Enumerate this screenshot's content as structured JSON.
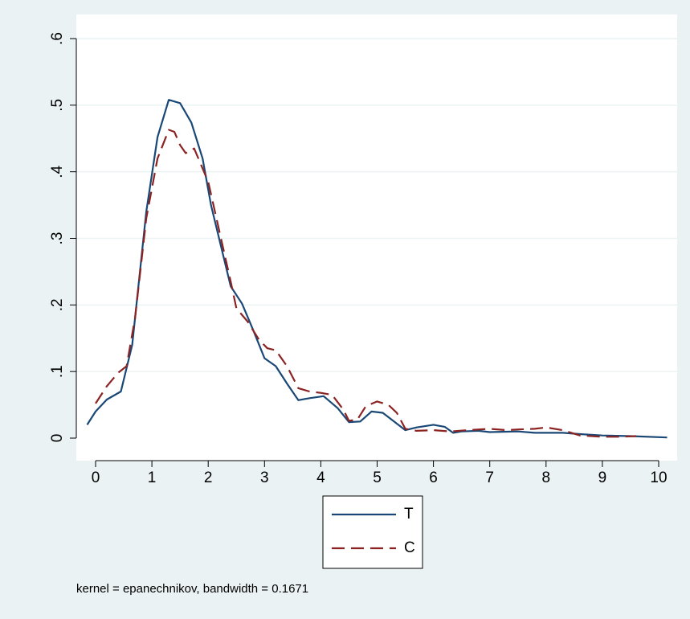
{
  "chart_data": {
    "type": "line",
    "title": "",
    "xlabel": "",
    "ylabel": "",
    "xlim": [
      -0.2,
      10.2
    ],
    "ylim": [
      0,
      0.6
    ],
    "x_ticks": [
      0,
      1,
      2,
      3,
      4,
      5,
      6,
      7,
      8,
      9,
      10
    ],
    "x_tick_labels": [
      "0",
      "1",
      "2",
      "3",
      "4",
      "5",
      "6",
      "7",
      "8",
      "9",
      "10"
    ],
    "y_ticks": [
      0,
      0.1,
      0.2,
      0.3,
      0.4,
      0.5,
      0.6
    ],
    "y_tick_labels": [
      "0",
      ".1",
      ".2",
      ".3",
      ".4",
      ".5",
      ".6"
    ],
    "grid": "horizontal",
    "legend_position": "bottom-center",
    "note": "kernel = epanechnikov, bandwidth = 0.1671",
    "colors": {
      "background": "#eaf2f3",
      "plot_area": "#ffffff",
      "gridline": "#eaf2f3",
      "T": "#1a4876",
      "C": "#8b2323"
    },
    "series": [
      {
        "name": "T",
        "style": "solid",
        "x": [
          -0.15,
          0.0,
          0.2,
          0.45,
          0.65,
          0.9,
          1.1,
          1.3,
          1.5,
          1.7,
          1.9,
          2.05,
          2.4,
          2.6,
          2.8,
          3.0,
          3.2,
          3.4,
          3.6,
          3.8,
          4.05,
          4.3,
          4.5,
          4.7,
          4.9,
          5.1,
          5.3,
          5.5,
          5.7,
          6.0,
          6.2,
          6.35,
          6.5,
          6.8,
          7.0,
          7.5,
          7.8,
          8.0,
          8.3,
          8.6,
          9.0,
          9.5,
          10.15
        ],
        "values": [
          0.02,
          0.04,
          0.058,
          0.07,
          0.14,
          0.34,
          0.452,
          0.508,
          0.503,
          0.474,
          0.42,
          0.35,
          0.228,
          0.202,
          0.162,
          0.12,
          0.108,
          0.082,
          0.057,
          0.06,
          0.063,
          0.045,
          0.024,
          0.025,
          0.04,
          0.038,
          0.025,
          0.012,
          0.016,
          0.02,
          0.017,
          0.008,
          0.01,
          0.011,
          0.009,
          0.01,
          0.008,
          0.008,
          0.008,
          0.006,
          0.004,
          0.003,
          0.001
        ]
      },
      {
        "name": "C",
        "style": "dashed",
        "x": [
          0.0,
          0.2,
          0.4,
          0.55,
          0.7,
          0.9,
          1.1,
          1.3,
          1.4,
          1.5,
          1.6,
          1.75,
          2.0,
          2.2,
          2.4,
          2.5,
          2.7,
          2.9,
          3.05,
          3.2,
          3.4,
          3.6,
          3.8,
          4.0,
          4.2,
          4.4,
          4.5,
          4.65,
          4.8,
          5.0,
          5.2,
          5.35,
          5.5,
          5.7,
          6.0,
          6.3,
          6.6,
          7.0,
          7.3,
          7.5,
          7.8,
          8.0,
          8.3,
          8.6,
          9.0,
          9.3,
          9.6
        ],
        "values": [
          0.052,
          0.078,
          0.098,
          0.108,
          0.18,
          0.33,
          0.42,
          0.463,
          0.46,
          0.44,
          0.428,
          0.435,
          0.385,
          0.31,
          0.235,
          0.195,
          0.175,
          0.148,
          0.135,
          0.132,
          0.108,
          0.075,
          0.07,
          0.068,
          0.065,
          0.043,
          0.026,
          0.028,
          0.048,
          0.055,
          0.05,
          0.038,
          0.014,
          0.011,
          0.012,
          0.01,
          0.012,
          0.014,
          0.012,
          0.013,
          0.014,
          0.016,
          0.012,
          0.004,
          0.002,
          0.002,
          0.003
        ]
      }
    ]
  }
}
